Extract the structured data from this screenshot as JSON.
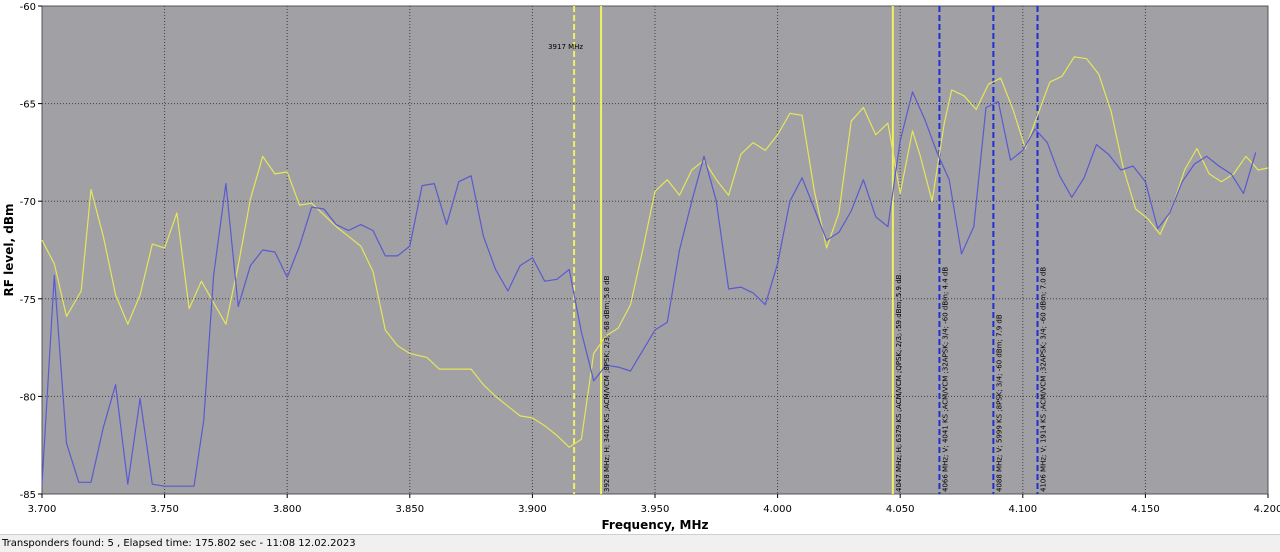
{
  "chart_data": {
    "type": "line",
    "xlabel": "Frequency, MHz",
    "ylabel": "RF level, dBm",
    "xlim": [
      3.7,
      4.2
    ],
    "ylim": [
      -85,
      -60
    ],
    "x_ticks": [
      "3.700",
      "3.750",
      "3.800",
      "3.850",
      "3.900",
      "3.950",
      "4.000",
      "4.050",
      "4.100",
      "4.150",
      "4.200"
    ],
    "y_ticks": [
      "-60",
      "-65",
      "-70",
      "-75",
      "-80",
      "-85"
    ],
    "grid": true,
    "plot_background": "#a0a0a5",
    "series": [
      {
        "color": "#e6e65a",
        "points": [
          [
            3.7,
            -72.0
          ],
          [
            3.705,
            -73.2
          ],
          [
            3.71,
            -75.9
          ],
          [
            3.716,
            -74.6
          ],
          [
            3.72,
            -69.4
          ],
          [
            3.725,
            -71.8
          ],
          [
            3.73,
            -74.8
          ],
          [
            3.735,
            -76.3
          ],
          [
            3.74,
            -74.8
          ],
          [
            3.745,
            -72.2
          ],
          [
            3.75,
            -72.4
          ],
          [
            3.755,
            -70.6
          ],
          [
            3.76,
            -75.5
          ],
          [
            3.765,
            -74.1
          ],
          [
            3.77,
            -75.2
          ],
          [
            3.775,
            -76.3
          ],
          [
            3.78,
            -73.3
          ],
          [
            3.785,
            -69.9
          ],
          [
            3.79,
            -67.7
          ],
          [
            3.795,
            -68.6
          ],
          [
            3.8,
            -68.5
          ],
          [
            3.805,
            -70.2
          ],
          [
            3.81,
            -70.1
          ],
          [
            3.815,
            -70.7
          ],
          [
            3.82,
            -71.3
          ],
          [
            3.825,
            -71.8
          ],
          [
            3.83,
            -72.3
          ],
          [
            3.835,
            -73.6
          ],
          [
            3.84,
            -76.6
          ],
          [
            3.845,
            -77.4
          ],
          [
            3.85,
            -77.8
          ],
          [
            3.857,
            -78.0
          ],
          [
            3.862,
            -78.6
          ],
          [
            3.87,
            -78.6
          ],
          [
            3.875,
            -78.6
          ],
          [
            3.88,
            -79.4
          ],
          [
            3.885,
            -80.0
          ],
          [
            3.89,
            -80.5
          ],
          [
            3.895,
            -81.0
          ],
          [
            3.9,
            -81.1
          ],
          [
            3.905,
            -81.5
          ],
          [
            3.91,
            -82.0
          ],
          [
            3.915,
            -82.6
          ],
          [
            3.92,
            -82.2
          ],
          [
            3.925,
            -77.8
          ],
          [
            3.93,
            -76.9
          ],
          [
            3.935,
            -76.5
          ],
          [
            3.94,
            -75.3
          ],
          [
            3.945,
            -72.5
          ],
          [
            3.95,
            -69.5
          ],
          [
            3.955,
            -68.9
          ],
          [
            3.96,
            -69.7
          ],
          [
            3.965,
            -68.4
          ],
          [
            3.97,
            -67.9
          ],
          [
            3.975,
            -68.9
          ],
          [
            3.98,
            -69.7
          ],
          [
            3.985,
            -67.6
          ],
          [
            3.99,
            -67.0
          ],
          [
            3.995,
            -67.4
          ],
          [
            4.0,
            -66.6
          ],
          [
            4.005,
            -65.5
          ],
          [
            4.01,
            -65.6
          ],
          [
            4.015,
            -69.5
          ],
          [
            4.02,
            -72.4
          ],
          [
            4.025,
            -70.6
          ],
          [
            4.03,
            -65.9
          ],
          [
            4.035,
            -65.2
          ],
          [
            4.04,
            -66.6
          ],
          [
            4.045,
            -66.0
          ],
          [
            4.05,
            -69.6
          ],
          [
            4.055,
            -66.4
          ],
          [
            4.058,
            -67.6
          ],
          [
            4.063,
            -70.0
          ],
          [
            4.068,
            -66.0
          ],
          [
            4.071,
            -64.3
          ],
          [
            4.076,
            -64.6
          ],
          [
            4.081,
            -65.3
          ],
          [
            4.086,
            -64.0
          ],
          [
            4.091,
            -63.7
          ],
          [
            4.096,
            -65.3
          ],
          [
            4.101,
            -67.3
          ],
          [
            4.106,
            -65.6
          ],
          [
            4.111,
            -63.9
          ],
          [
            4.116,
            -63.6
          ],
          [
            4.121,
            -62.6
          ],
          [
            4.126,
            -62.7
          ],
          [
            4.131,
            -63.5
          ],
          [
            4.136,
            -65.4
          ],
          [
            4.141,
            -68.3
          ],
          [
            4.146,
            -70.4
          ],
          [
            4.151,
            -70.9
          ],
          [
            4.156,
            -71.7
          ],
          [
            4.161,
            -70.3
          ],
          [
            4.166,
            -68.4
          ],
          [
            4.171,
            -67.3
          ],
          [
            4.176,
            -68.6
          ],
          [
            4.181,
            -69.0
          ],
          [
            4.186,
            -68.6
          ],
          [
            4.191,
            -67.7
          ],
          [
            4.196,
            -68.4
          ],
          [
            4.2,
            -68.3
          ]
        ]
      },
      {
        "color": "#5a5ad0",
        "points": [
          [
            3.7,
            -84.5
          ],
          [
            3.705,
            -73.8
          ],
          [
            3.71,
            -82.4
          ],
          [
            3.715,
            -84.4
          ],
          [
            3.72,
            -84.4
          ],
          [
            3.725,
            -81.6
          ],
          [
            3.73,
            -79.4
          ],
          [
            3.735,
            -84.5
          ],
          [
            3.74,
            -80.1
          ],
          [
            3.745,
            -84.5
          ],
          [
            3.75,
            -84.6
          ],
          [
            3.755,
            -84.6
          ],
          [
            3.762,
            -84.6
          ],
          [
            3.766,
            -81.2
          ],
          [
            3.77,
            -73.8
          ],
          [
            3.775,
            -69.1
          ],
          [
            3.78,
            -75.4
          ],
          [
            3.785,
            -73.3
          ],
          [
            3.79,
            -72.5
          ],
          [
            3.795,
            -72.6
          ],
          [
            3.8,
            -73.9
          ],
          [
            3.805,
            -72.3
          ],
          [
            3.81,
            -70.3
          ],
          [
            3.815,
            -70.4
          ],
          [
            3.82,
            -71.2
          ],
          [
            3.825,
            -71.5
          ],
          [
            3.83,
            -71.2
          ],
          [
            3.835,
            -71.5
          ],
          [
            3.84,
            -72.8
          ],
          [
            3.845,
            -72.8
          ],
          [
            3.85,
            -72.3
          ],
          [
            3.855,
            -69.2
          ],
          [
            3.86,
            -69.1
          ],
          [
            3.865,
            -71.2
          ],
          [
            3.87,
            -69.0
          ],
          [
            3.875,
            -68.7
          ],
          [
            3.88,
            -71.8
          ],
          [
            3.885,
            -73.5
          ],
          [
            3.89,
            -74.6
          ],
          [
            3.895,
            -73.3
          ],
          [
            3.9,
            -72.9
          ],
          [
            3.905,
            -74.1
          ],
          [
            3.91,
            -74.0
          ],
          [
            3.915,
            -73.5
          ],
          [
            3.92,
            -76.7
          ],
          [
            3.925,
            -79.2
          ],
          [
            3.93,
            -78.4
          ],
          [
            3.935,
            -78.5
          ],
          [
            3.94,
            -78.7
          ],
          [
            3.95,
            -76.6
          ],
          [
            3.955,
            -76.2
          ],
          [
            3.96,
            -72.5
          ],
          [
            3.965,
            -70.0
          ],
          [
            3.97,
            -67.7
          ],
          [
            3.975,
            -70.0
          ],
          [
            3.98,
            -74.5
          ],
          [
            3.985,
            -74.4
          ],
          [
            3.99,
            -74.7
          ],
          [
            3.995,
            -75.3
          ],
          [
            4.0,
            -73.2
          ],
          [
            4.005,
            -70.0
          ],
          [
            4.01,
            -68.8
          ],
          [
            4.015,
            -70.4
          ],
          [
            4.02,
            -72.0
          ],
          [
            4.025,
            -71.6
          ],
          [
            4.03,
            -70.5
          ],
          [
            4.035,
            -68.9
          ],
          [
            4.04,
            -70.8
          ],
          [
            4.045,
            -71.3
          ],
          [
            4.05,
            -66.9
          ],
          [
            4.055,
            -64.4
          ],
          [
            4.06,
            -65.8
          ],
          [
            4.065,
            -67.5
          ],
          [
            4.07,
            -68.9
          ],
          [
            4.075,
            -72.7
          ],
          [
            4.08,
            -71.3
          ],
          [
            4.085,
            -65.2
          ],
          [
            4.09,
            -64.9
          ],
          [
            4.095,
            -67.9
          ],
          [
            4.1,
            -67.4
          ],
          [
            4.105,
            -66.3
          ],
          [
            4.11,
            -67.0
          ],
          [
            4.115,
            -68.7
          ],
          [
            4.12,
            -69.8
          ],
          [
            4.125,
            -68.8
          ],
          [
            4.13,
            -67.1
          ],
          [
            4.135,
            -67.6
          ],
          [
            4.14,
            -68.4
          ],
          [
            4.145,
            -68.2
          ],
          [
            4.15,
            -69.0
          ],
          [
            4.155,
            -71.4
          ],
          [
            4.16,
            -70.6
          ],
          [
            4.165,
            -69.0
          ],
          [
            4.17,
            -68.1
          ],
          [
            4.175,
            -67.7
          ],
          [
            4.18,
            -68.2
          ],
          [
            4.185,
            -68.6
          ],
          [
            4.19,
            -69.6
          ],
          [
            4.195,
            -67.5
          ]
        ]
      }
    ],
    "markers": [
      {
        "x": 3.917,
        "label": "3917 MHz",
        "color": "#f0f060",
        "dash": "6,3",
        "label_pos": "top"
      },
      {
        "x": 3.928,
        "label": "3928 MHz; H; 3402 KS ;ACM/VCM ;8PSK; 2/3; -68 dBm; 5.8 dB",
        "color": "#f0f060",
        "dash": "",
        "label_pos": "vertical"
      },
      {
        "x": 4.047,
        "label": "4047 MHz; H; 6379 KS ;ACM/VCM ;QPSK; 2/3; -59 dBm; 5.9 dB",
        "color": "#f0f060",
        "dash": "",
        "label_pos": "vertical"
      },
      {
        "x": 4.066,
        "label": "4066 MHz; V; 4041 KS ;ACM/VCM ;32APSK; 3/4; -60 dBm; 4.4 dB",
        "color": "#1f2fd0",
        "dash": "6,3",
        "label_pos": "vertical"
      },
      {
        "x": 4.088,
        "label": "4088 MHz; V; 5999 KS ;8PSK; 3/4; -60 dBm; 7.9 dB",
        "color": "#1f2fd0",
        "dash": "6,3",
        "label_pos": "vertical"
      },
      {
        "x": 4.106,
        "label": "4106 MHz; V; 1914 KS ;ACM/VCM ;32APSK; 3/4; -60 dBm; 7.0 dB",
        "color": "#1f2fd0",
        "dash": "6,3",
        "label_pos": "vertical"
      }
    ]
  },
  "status": {
    "text": "Transponders found: 5 , Elapsed time: 175.802 sec - 11:08 12.02.2023"
  }
}
